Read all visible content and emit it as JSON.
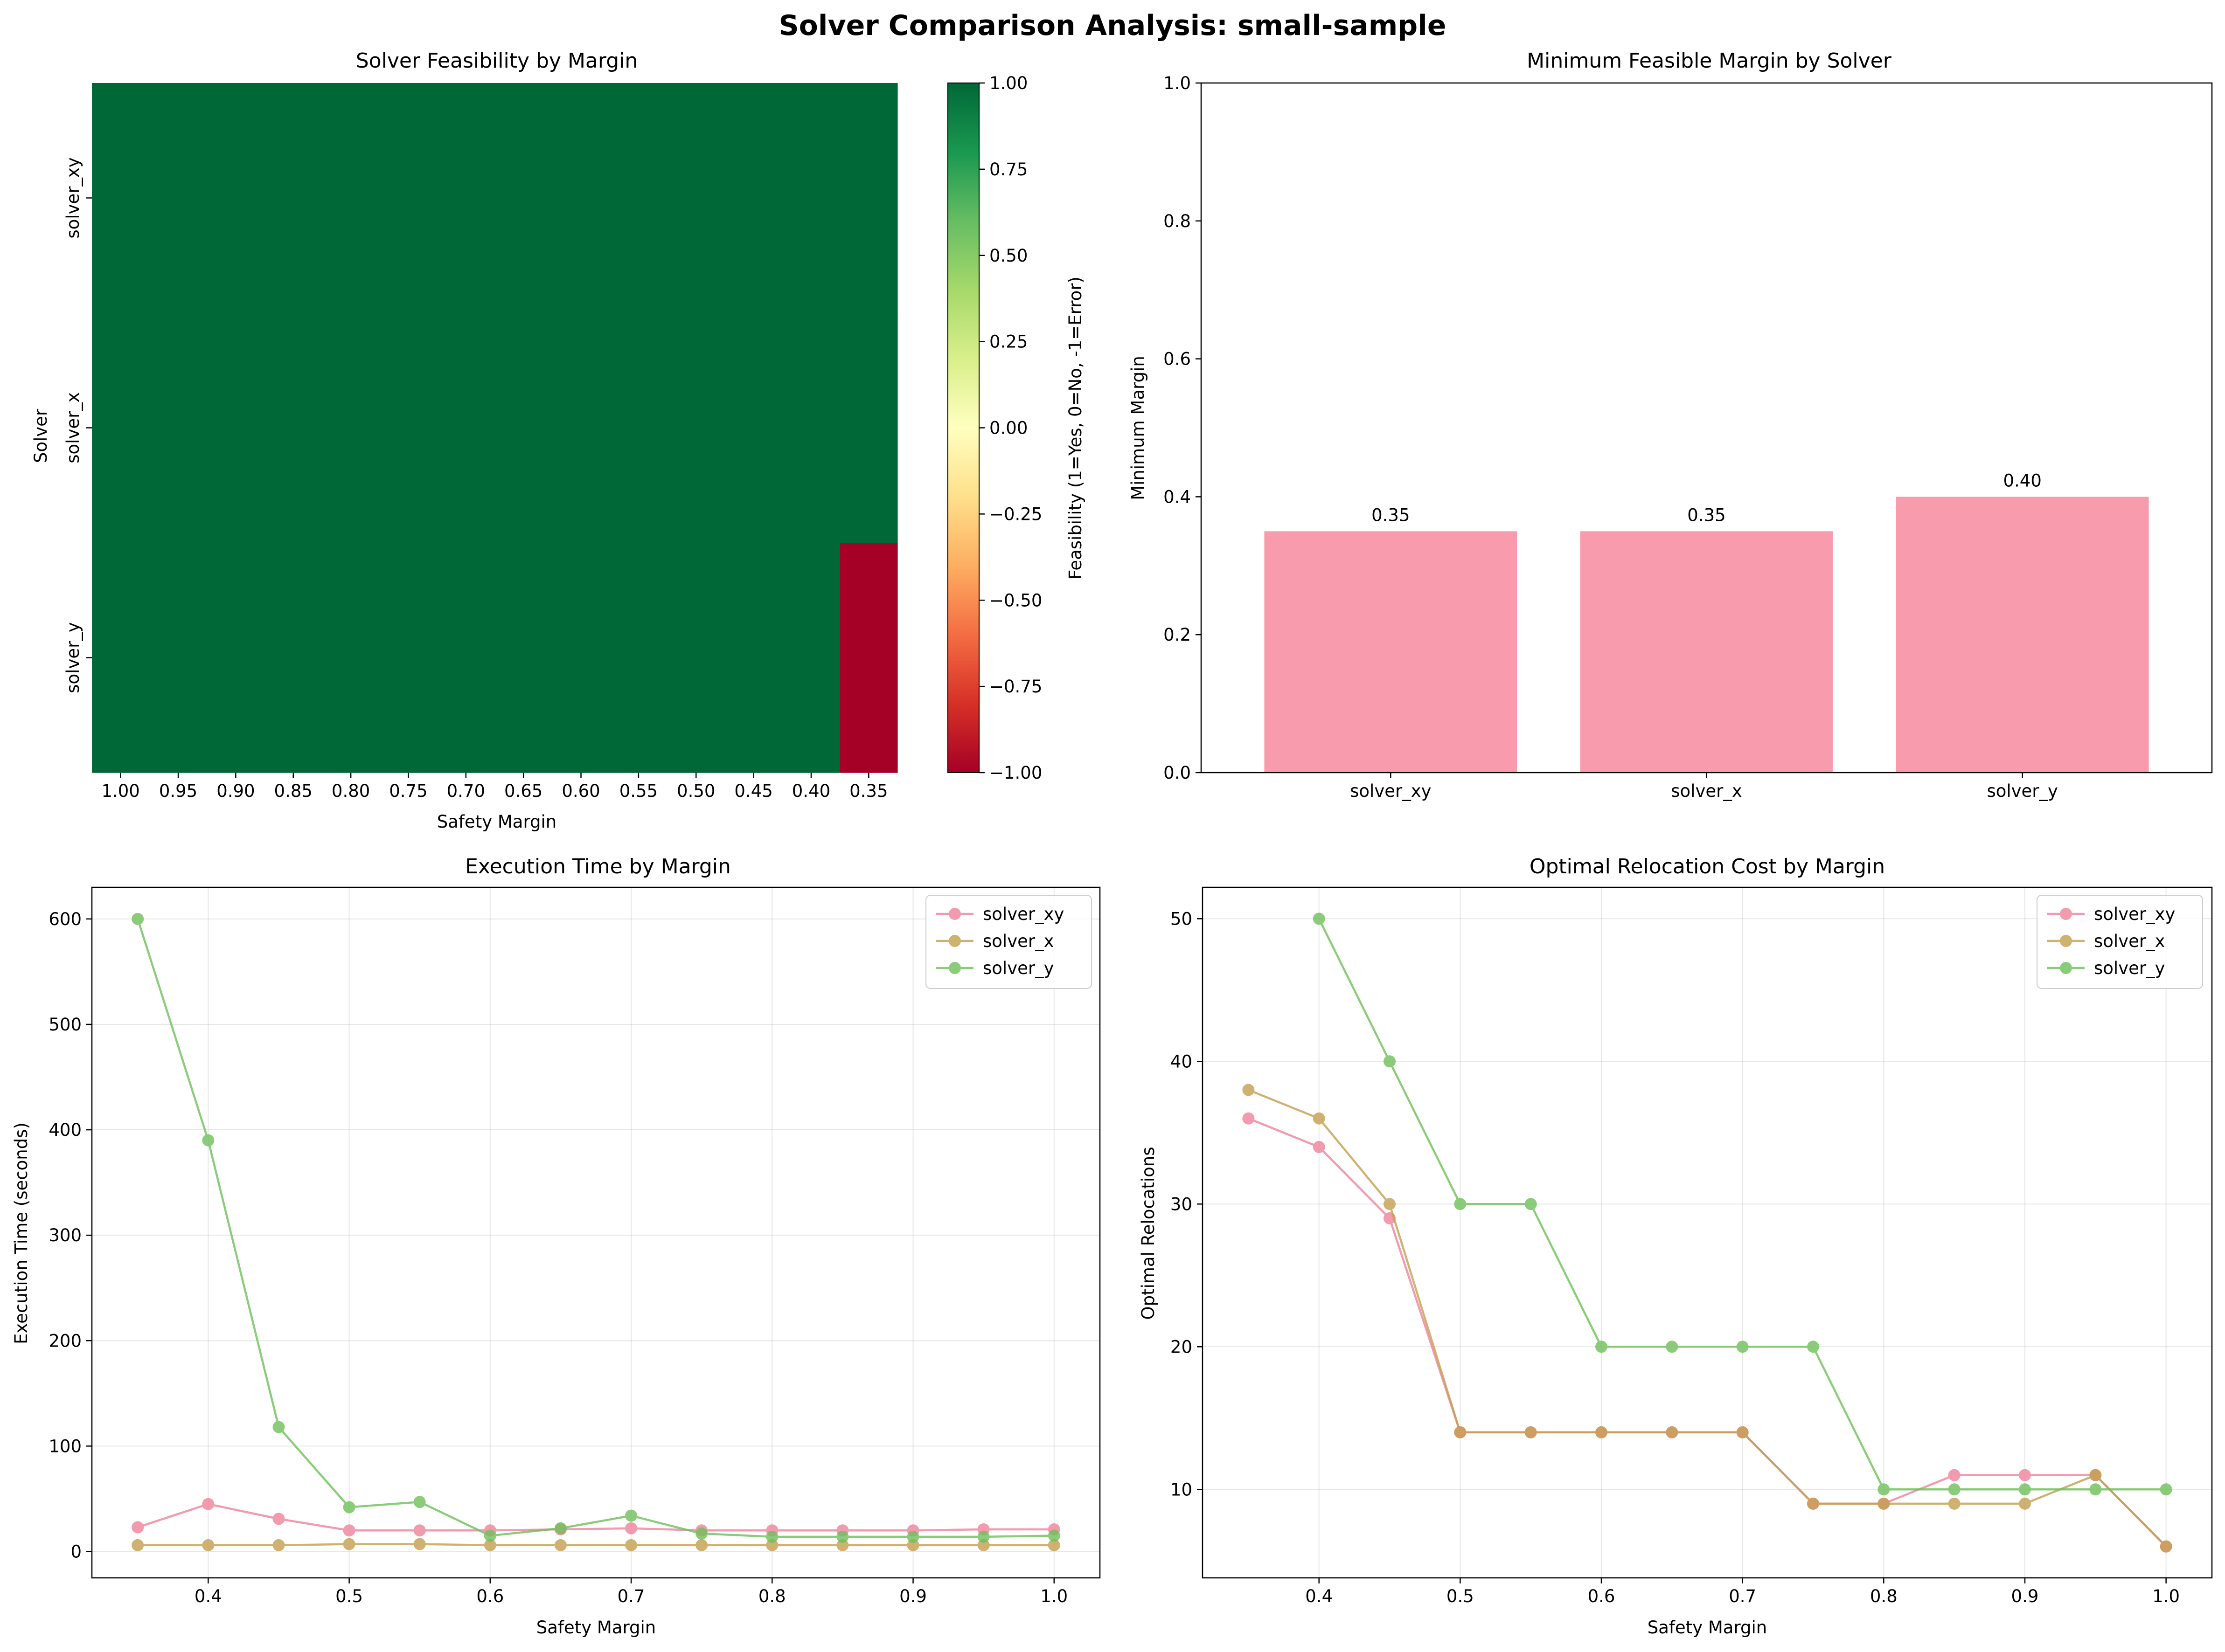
{
  "title": "Solver Comparison Analysis: small-sample",
  "chart_data": [
    {
      "type": "heatmap",
      "title": "Solver Feasibility by Margin",
      "xlabel": "Safety Margin",
      "ylabel": "Solver",
      "x_categories": [
        "1.00",
        "0.95",
        "0.90",
        "0.85",
        "0.80",
        "0.75",
        "0.70",
        "0.65",
        "0.60",
        "0.55",
        "0.50",
        "0.45",
        "0.40",
        "0.35"
      ],
      "y_categories": [
        "solver_xy",
        "solver_x",
        "solver_y"
      ],
      "values": [
        [
          1,
          1,
          1,
          1,
          1,
          1,
          1,
          1,
          1,
          1,
          1,
          1,
          1,
          1
        ],
        [
          1,
          1,
          1,
          1,
          1,
          1,
          1,
          1,
          1,
          1,
          1,
          1,
          1,
          1
        ],
        [
          1,
          1,
          1,
          1,
          1,
          1,
          1,
          1,
          1,
          1,
          1,
          1,
          1,
          -1
        ]
      ],
      "colorbar": {
        "label": "Feasibility (1=Yes, 0=No, -1=Error)",
        "range": [
          -1,
          1
        ],
        "ticks": [
          "1.00",
          "0.75",
          "0.50",
          "0.25",
          "0.00",
          "−0.25",
          "−0.50",
          "−0.75",
          "−1.00"
        ],
        "colormap": "RdYlGn"
      }
    },
    {
      "type": "bar",
      "title": "Minimum Feasible Margin by Solver",
      "xlabel": "",
      "ylabel": "Minimum Margin",
      "categories": [
        "solver_xy",
        "solver_x",
        "solver_y"
      ],
      "values": [
        0.35,
        0.35,
        0.4
      ],
      "data_labels": [
        "0.35",
        "0.35",
        "0.40"
      ],
      "ylim": [
        0,
        1.0
      ],
      "yticks": [
        "0.0",
        "0.2",
        "0.4",
        "0.6",
        "0.8",
        "1.0"
      ],
      "color": "#f89cad"
    },
    {
      "type": "line",
      "title": "Execution Time by Margin",
      "xlabel": "Safety Margin",
      "ylabel": "Execution Time (seconds)",
      "x": [
        0.35,
        0.4,
        0.45,
        0.5,
        0.55,
        0.6,
        0.65,
        0.7,
        0.75,
        0.8,
        0.85,
        0.9,
        0.95,
        1.0
      ],
      "xlim": [
        0.3175,
        1.0325
      ],
      "ylim": [
        -25,
        630
      ],
      "xticks": [
        0.4,
        0.5,
        0.6,
        0.7,
        0.8,
        0.9,
        1.0
      ],
      "xtick_labels": [
        "0.4",
        "0.5",
        "0.6",
        "0.7",
        "0.8",
        "0.9",
        "1.0"
      ],
      "yticks": [
        0,
        100,
        200,
        300,
        400,
        500,
        600
      ],
      "yticks_labels": [
        "0",
        "100",
        "200",
        "300",
        "400",
        "500",
        "600"
      ],
      "grid": true,
      "legend": "top-right",
      "series": [
        {
          "name": "solver_xy",
          "color": "#f0829a",
          "values": [
            23,
            45,
            31,
            20,
            20,
            20,
            21,
            22,
            20,
            20,
            20,
            20,
            21,
            21
          ]
        },
        {
          "name": "solver_x",
          "color": "#c4a050",
          "values": [
            6,
            6,
            6,
            7,
            7,
            6,
            6,
            6,
            6,
            6,
            6,
            6,
            6,
            6
          ]
        },
        {
          "name": "solver_y",
          "color": "#6ec05a",
          "values": [
            600,
            390,
            118,
            42,
            47,
            15,
            22,
            34,
            17,
            14,
            14,
            14,
            14,
            15
          ]
        }
      ]
    },
    {
      "type": "line",
      "title": "Optimal Relocation Cost by Margin",
      "xlabel": "Safety Margin",
      "ylabel": "Optimal Relocations",
      "x": [
        0.35,
        0.4,
        0.45,
        0.5,
        0.55,
        0.6,
        0.65,
        0.7,
        0.75,
        0.8,
        0.85,
        0.9,
        0.95,
        1.0
      ],
      "xlim": [
        0.3175,
        1.0325
      ],
      "ylim": [
        3.8,
        52.2
      ],
      "xticks": [
        0.4,
        0.5,
        0.6,
        0.7,
        0.8,
        0.9,
        1.0
      ],
      "xtick_labels": [
        "0.4",
        "0.5",
        "0.6",
        "0.7",
        "0.8",
        "0.9",
        "1.0"
      ],
      "yticks": [
        10,
        20,
        30,
        40,
        50
      ],
      "yticks_labels": [
        "10",
        "20",
        "30",
        "40",
        "50"
      ],
      "grid": true,
      "legend": "top-right",
      "series": [
        {
          "name": "solver_xy",
          "color": "#f0829a",
          "values": [
            36,
            34,
            29,
            14,
            14,
            14,
            14,
            14,
            9,
            9,
            11,
            11,
            11,
            6
          ]
        },
        {
          "name": "solver_x",
          "color": "#c4a050",
          "values": [
            38,
            36,
            30,
            14,
            14,
            14,
            14,
            14,
            9,
            9,
            9,
            9,
            11,
            6
          ]
        },
        {
          "name": "solver_y",
          "color": "#6ec05a",
          "values": [
            null,
            50,
            40,
            30,
            30,
            20,
            20,
            20,
            20,
            10,
            10,
            10,
            10,
            10
          ]
        }
      ]
    }
  ]
}
